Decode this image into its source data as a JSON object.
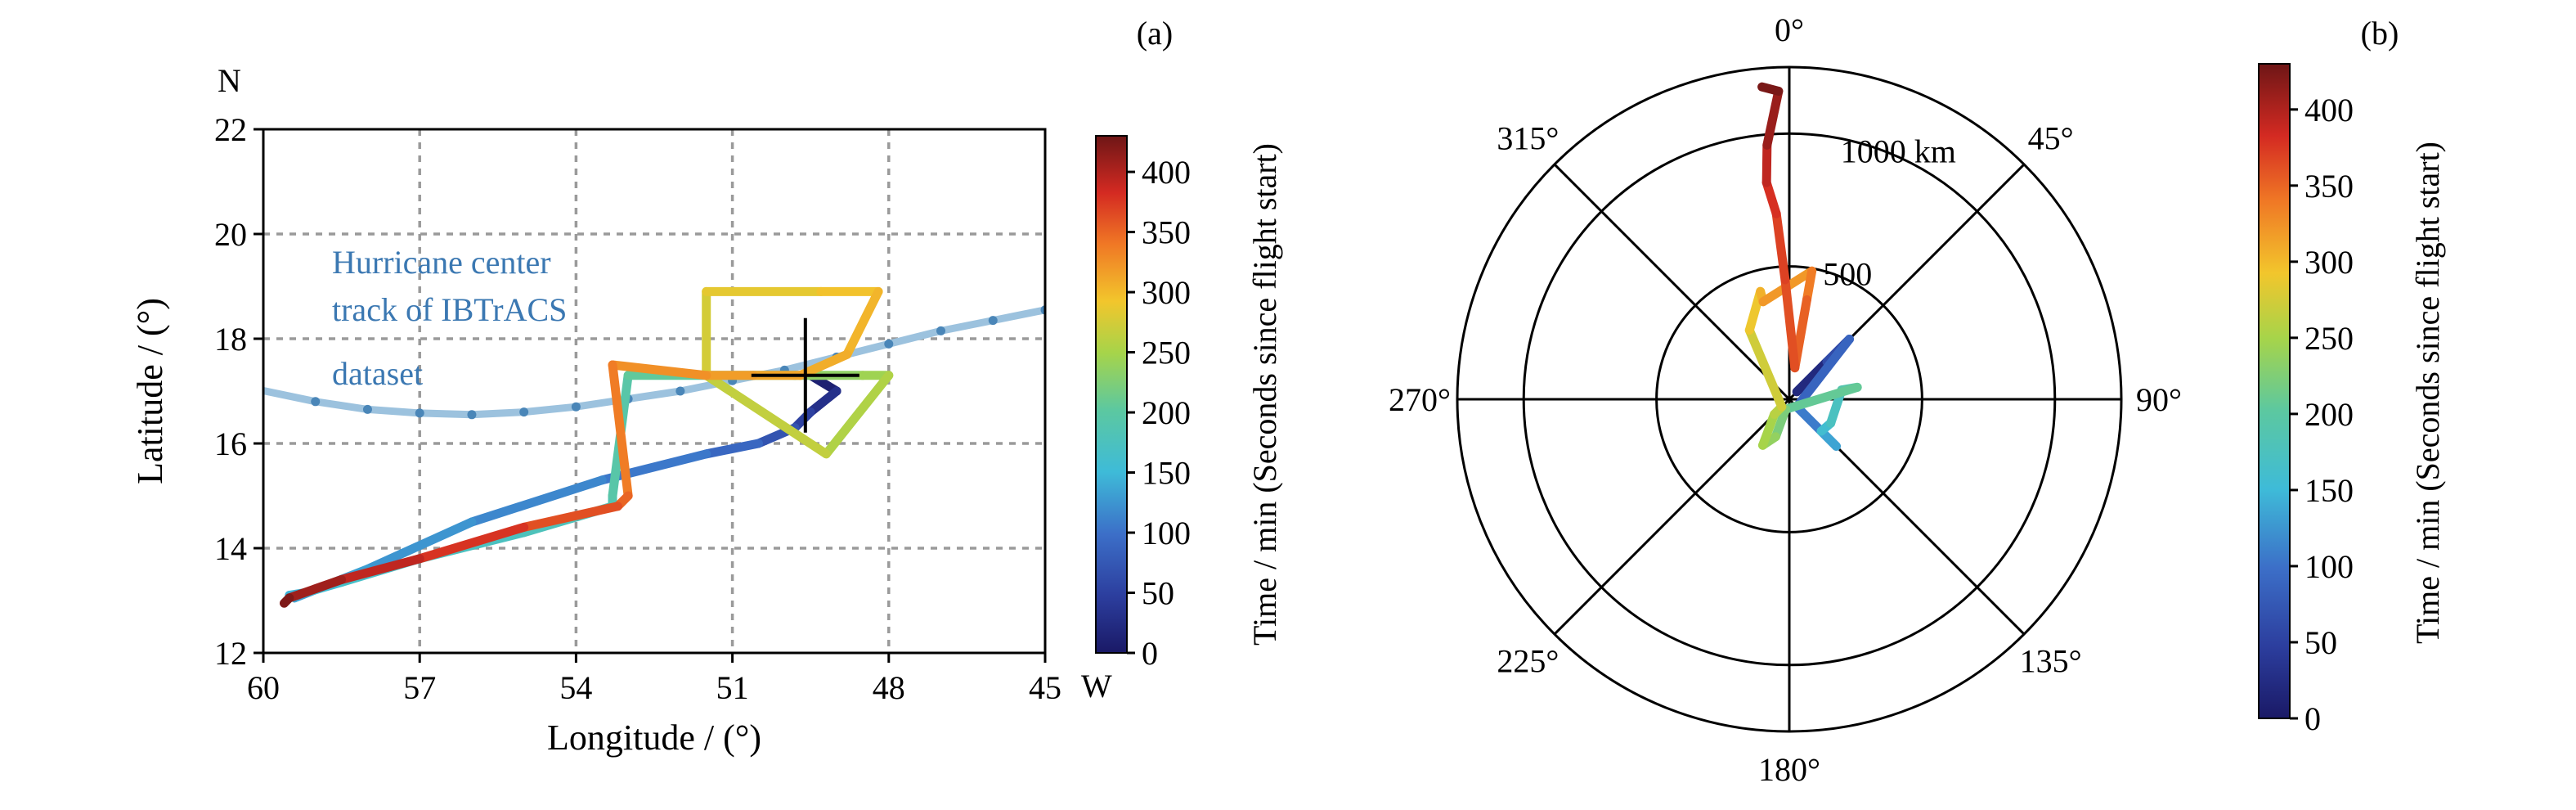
{
  "chart_data": [
    {
      "panel": "(a)",
      "type": "line",
      "xlabel": "Longitude / (°)",
      "ylabel": "Latitude / (°)",
      "x_hemisphere": "W",
      "y_hemisphere": "N",
      "xlim": [
        60,
        45
      ],
      "ylim": [
        12,
        22
      ],
      "xticks": [
        60,
        57,
        54,
        51,
        48,
        45
      ],
      "yticks": [
        12,
        14,
        16,
        18,
        20,
        22
      ],
      "grid": true,
      "annotation": "Hurricane center track of IBTrACS dataset",
      "annotation_lines": [
        "Hurricane center",
        "track of IBTrACS",
        "dataset"
      ],
      "hurricane_track": {
        "color": "#4a86b8",
        "lon": [
          60.2,
          59.0,
          58.0,
          57.0,
          56.0,
          55.0,
          54.0,
          53.0,
          52.0,
          51.0,
          50.0,
          49.0,
          48.0,
          47.0,
          46.0,
          45.0
        ],
        "lat": [
          17.05,
          16.8,
          16.65,
          16.58,
          16.55,
          16.6,
          16.7,
          16.85,
          17.0,
          17.2,
          17.4,
          17.65,
          17.9,
          18.15,
          18.35,
          18.55
        ]
      },
      "flight_track": {
        "colorbar_label": "Time / min (Seconds since flight start)",
        "lon": [
          49.5,
          49.0,
          49.5,
          49.8,
          50.5,
          51.5,
          53.5,
          56.0,
          58.0,
          59.4,
          59.5,
          59.2,
          58.5,
          57.0,
          55.0,
          53.3,
          53.3,
          53.0,
          51.5,
          49.8,
          49.5,
          48.5,
          48.0,
          49.2,
          51.5,
          51.5,
          49.3,
          48.2,
          48.8,
          49.7,
          50.6,
          51.5,
          53.3,
          53.0,
          53.2,
          55.0,
          57.0,
          58.5,
          59.5,
          59.6
        ],
        "lat": [
          17.3,
          17.0,
          16.6,
          16.3,
          16.0,
          15.8,
          15.3,
          14.5,
          13.6,
          13.05,
          13.1,
          13.15,
          13.35,
          13.8,
          14.3,
          14.8,
          15.0,
          17.3,
          17.3,
          17.3,
          17.3,
          17.3,
          17.3,
          15.8,
          17.3,
          18.9,
          18.9,
          18.9,
          17.7,
          17.3,
          17.3,
          17.3,
          17.5,
          15.0,
          14.8,
          14.4,
          13.8,
          13.4,
          13.05,
          12.95
        ],
        "time": [
          0,
          20,
          40,
          60,
          80,
          100,
          110,
          120,
          130,
          135,
          140,
          150,
          160,
          170,
          175,
          180,
          190,
          200,
          210,
          220,
          230,
          240,
          250,
          260,
          270,
          280,
          290,
          300,
          305,
          310,
          315,
          320,
          330,
          345,
          355,
          370,
          385,
          400,
          415,
          430
        ]
      },
      "center_marker": {
        "lon": 49.6,
        "lat": 17.3
      },
      "colorbar": {
        "label": "Time / min (Seconds since flight start)",
        "ticks": [
          0,
          50,
          100,
          150,
          200,
          250,
          300,
          350,
          400
        ],
        "range": [
          0,
          430
        ]
      }
    },
    {
      "panel": "(b)",
      "type": "line",
      "projection": "polar",
      "angle_labels": [
        "0°",
        "45°",
        "90°",
        "135°",
        "180°",
        "225°",
        "270°",
        "315°"
      ],
      "radial_ticks": [
        500,
        1000
      ],
      "radial_tick_labels": [
        "500",
        "1000 km"
      ],
      "rmax": 1250,
      "flight_track": {
        "theta_deg": [
          45,
          45,
          45,
          135,
          135,
          135,
          120,
          80,
          80,
          200,
          200,
          210,
          225,
          225,
          330,
          345,
          345,
          10,
          10,
          10,
          358,
          356,
          354,
          355,
          358,
          355
        ],
        "r_km": [
          40,
          200,
          320,
          40,
          250,
          170,
          180,
          200,
          260,
          40,
          150,
          200,
          80,
          40,
          300,
          420,
          380,
          490,
          380,
          120,
          450,
          700,
          820,
          960,
          1160,
          1180
        ],
        "time": [
          0,
          40,
          80,
          95,
          120,
          150,
          165,
          180,
          200,
          215,
          230,
          245,
          255,
          265,
          280,
          300,
          310,
          330,
          345,
          360,
          365,
          375,
          385,
          400,
          420,
          430
        ]
      },
      "colorbar": {
        "label": "Time / min (Seconds since flight start)",
        "ticks": [
          0,
          50,
          100,
          150,
          200,
          250,
          300,
          350,
          400
        ],
        "range": [
          0,
          430
        ]
      }
    }
  ]
}
